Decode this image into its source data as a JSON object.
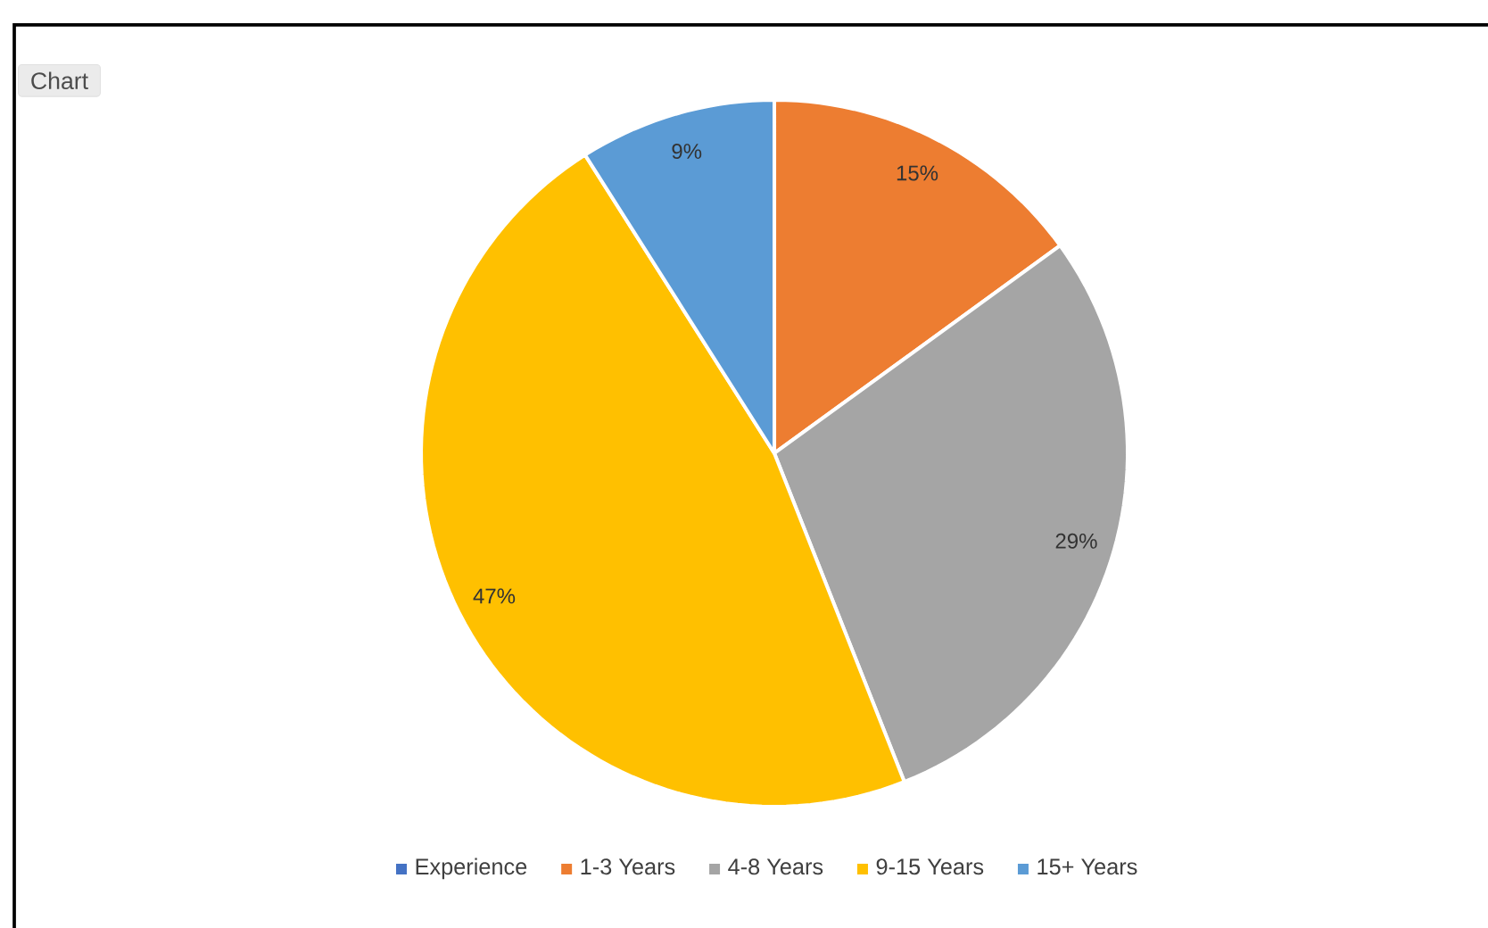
{
  "chart_data": {
    "type": "pie",
    "categories": [
      "Experience",
      "1-3 Years",
      "4-8 Years",
      "9-15 Years",
      "15+ Years"
    ],
    "values": [
      null,
      15,
      29,
      47,
      9
    ],
    "colors": [
      "#4472c4",
      "#ed7d31",
      "#a5a5a5",
      "#ffc000",
      "#5b9bd5"
    ],
    "value_labels": [
      null,
      "15%",
      "29%",
      "47%",
      "9%"
    ],
    "legend": "bottom",
    "annotations": [
      "Chart"
    ]
  }
}
